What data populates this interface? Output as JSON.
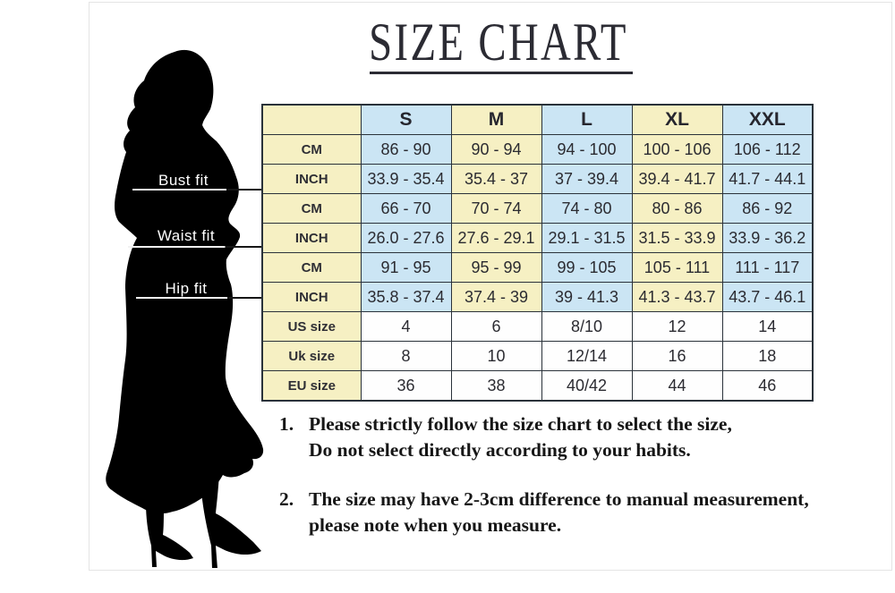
{
  "page": {
    "title": "SIZE CHART"
  },
  "figure": {
    "description": "black silhouette of a woman in a long fitted dress and high heels",
    "fit_labels": [
      {
        "label": "Bust fit"
      },
      {
        "label": "Waist fit"
      },
      {
        "label": "Hip fit"
      }
    ]
  },
  "size_table": {
    "columns": [
      "",
      "S",
      "M",
      "L",
      "XL",
      "XXL"
    ],
    "measurement_rows": [
      {
        "group": "Bust fit",
        "unit": "CM",
        "values": [
          "86 - 90",
          "90 - 94",
          "94 - 100",
          "100 - 106",
          "106 - 112"
        ]
      },
      {
        "group": "Bust fit",
        "unit": "INCH",
        "values": [
          "33.9 - 35.4",
          "35.4 - 37",
          "37 - 39.4",
          "39.4 - 41.7",
          "41.7 - 44.1"
        ]
      },
      {
        "group": "Waist fit",
        "unit": "CM",
        "values": [
          "66 - 70",
          "70 - 74",
          "74 - 80",
          "80 - 86",
          "86 - 92"
        ]
      },
      {
        "group": "Waist fit",
        "unit": "INCH",
        "values": [
          "26.0 - 27.6",
          "27.6 - 29.1",
          "29.1 - 31.5",
          "31.5 - 33.9",
          "33.9 - 36.2"
        ]
      },
      {
        "group": "Hip fit",
        "unit": "CM",
        "values": [
          "91 - 95",
          "95 - 99",
          "99 - 105",
          "105 - 111",
          "111 - 117"
        ]
      },
      {
        "group": "Hip fit",
        "unit": "INCH",
        "values": [
          "35.8 - 37.4",
          "37.4 - 39",
          "39 - 41.3",
          "41.3 - 43.7",
          "43.7 - 46.1"
        ]
      }
    ],
    "size_rows": [
      {
        "label": "US size",
        "values": [
          "4",
          "6",
          "8/10",
          "12",
          "14"
        ]
      },
      {
        "label": "Uk size",
        "values": [
          "8",
          "10",
          "12/14",
          "16",
          "18"
        ]
      },
      {
        "label": "EU size",
        "values": [
          "36",
          "38",
          "40/42",
          "44",
          "46"
        ]
      }
    ]
  },
  "notes": [
    {
      "number": "1.",
      "line1": "Please strictly follow the size chart to select the size,",
      "line2": "Do not select directly according to your habits."
    },
    {
      "number": "2.",
      "line1": "The size may have 2-3cm difference  to manual measurement,",
      "line2": "please note when you measure."
    }
  ],
  "colors": {
    "cell_yellow": "#F6F0C3",
    "cell_blue": "#CBE5F4",
    "cell_white": "#FEFEFE",
    "table_border": "#2A323A",
    "title_ink": "#2B2B33",
    "silhouette": "#000000",
    "fit_label_text": "#FFFFFF"
  }
}
